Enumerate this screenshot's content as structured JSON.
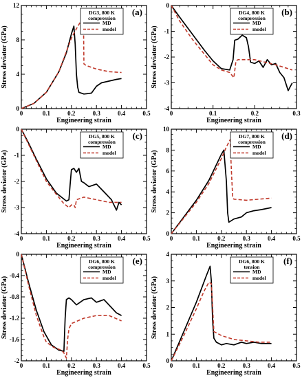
{
  "chart_data": [
    {
      "id": "a",
      "type": "line",
      "panel_label": "(a)",
      "legend_title_1": "DG3, 800 K",
      "legend_title_2": "compression",
      "xlabel": "Engineering strain",
      "ylabel": "Stress deviator (GPa)",
      "xlim": [
        0,
        0.5
      ],
      "ylim": [
        0,
        12
      ],
      "xticks": [
        0,
        0.1,
        0.2,
        0.3,
        0.4,
        0.5
      ],
      "xtick_labels": [
        "0",
        "0.1",
        "0.2",
        "0.3",
        "0.4",
        "0.5"
      ],
      "yticks": [
        0,
        4,
        8,
        12
      ],
      "ytick_labels": [
        "0",
        "4",
        "8",
        "12"
      ],
      "series": [
        {
          "name": "MD",
          "color": "#000000",
          "dash": false,
          "x": [
            0,
            0.05,
            0.1,
            0.15,
            0.18,
            0.2,
            0.21,
            0.215,
            0.22,
            0.225,
            0.23,
            0.25,
            0.28,
            0.3,
            0.32,
            0.35,
            0.38,
            0.4
          ],
          "y": [
            0,
            0.6,
            1.9,
            4.3,
            6.5,
            8.7,
            9.6,
            7.5,
            4.0,
            2.5,
            1.9,
            1.7,
            1.8,
            2.6,
            3.0,
            3.2,
            3.4,
            3.5
          ]
        },
        {
          "name": "model",
          "color": "#c0392b",
          "dash": true,
          "x": [
            0,
            0.05,
            0.1,
            0.15,
            0.2,
            0.22,
            0.24,
            0.248,
            0.25,
            0.26,
            0.3,
            0.35,
            0.4
          ],
          "y": [
            0,
            0.6,
            1.9,
            4.3,
            8.2,
            9.3,
            10.3,
            10.6,
            5.2,
            5.0,
            4.6,
            4.3,
            4.2
          ]
        }
      ]
    },
    {
      "id": "b",
      "type": "line",
      "panel_label": "(b)",
      "legend_title_1": "DG4, 800 K",
      "legend_title_2": "compression",
      "xlabel": "Engineering strain",
      "ylabel": "Stress deviator (GPa)",
      "xlim": [
        0,
        0.3
      ],
      "ylim": [
        -4,
        0
      ],
      "xticks": [
        0,
        0.1,
        0.2,
        0.3
      ],
      "xtick_labels": [
        "0",
        "0.1",
        "0.2",
        "0.3"
      ],
      "yticks": [
        -4,
        -3,
        -2,
        -1,
        0
      ],
      "ytick_labels": [
        "-4",
        "-3",
        "-2",
        "-1",
        "0"
      ],
      "series": [
        {
          "name": "MD",
          "color": "#000000",
          "dash": false,
          "x": [
            0,
            0.02,
            0.05,
            0.08,
            0.1,
            0.12,
            0.14,
            0.148,
            0.152,
            0.16,
            0.17,
            0.18,
            0.185,
            0.19,
            0.2,
            0.21,
            0.22,
            0.23,
            0.24,
            0.25,
            0.26,
            0.27,
            0.28,
            0.29
          ],
          "y": [
            0,
            -0.45,
            -1.1,
            -1.75,
            -2.15,
            -2.45,
            -2.5,
            -2.1,
            -1.35,
            -1.3,
            -1.15,
            -1.25,
            -1.6,
            -2.2,
            -2.25,
            -2.15,
            -2.4,
            -2.1,
            -2.3,
            -2.25,
            -2.6,
            -2.8,
            -3.3,
            -3.0
          ]
        },
        {
          "name": "model",
          "color": "#c0392b",
          "dash": true,
          "x": [
            0,
            0.02,
            0.05,
            0.08,
            0.1,
            0.12,
            0.14,
            0.15,
            0.155,
            0.16,
            0.2,
            0.25,
            0.29
          ],
          "y": [
            0,
            -0.6,
            -1.3,
            -1.9,
            -2.3,
            -2.5,
            -2.6,
            -2.8,
            -2.15,
            -2.1,
            -2.1,
            -2.3,
            -2.5
          ]
        }
      ]
    },
    {
      "id": "c",
      "type": "line",
      "panel_label": "(c)",
      "legend_title_1": "DG5, 800 K",
      "legend_title_2": "compression",
      "xlabel": "Engineering strain",
      "ylabel": "Stress deviator (GPa)",
      "xlim": [
        0,
        0.5
      ],
      "ylim": [
        -4,
        0
      ],
      "xticks": [
        0,
        0.1,
        0.2,
        0.3,
        0.4,
        0.5
      ],
      "xtick_labels": [
        "0",
        "0.1",
        "0.2",
        "0.3",
        "0.4",
        "0.5"
      ],
      "yticks": [
        -4,
        -3,
        -2,
        -1,
        0
      ],
      "ytick_labels": [
        "-4",
        "-3",
        "-2",
        "-1",
        "0"
      ],
      "series": [
        {
          "name": "MD",
          "color": "#000000",
          "dash": false,
          "x": [
            0,
            0.03,
            0.06,
            0.1,
            0.14,
            0.18,
            0.19,
            0.195,
            0.2,
            0.21,
            0.22,
            0.23,
            0.24,
            0.25,
            0.27,
            0.3,
            0.32,
            0.34,
            0.36,
            0.38,
            0.39,
            0.4
          ],
          "y": [
            0,
            -0.55,
            -1.15,
            -1.9,
            -2.45,
            -2.75,
            -2.7,
            -2.1,
            -1.55,
            -1.5,
            -1.65,
            -1.5,
            -2.0,
            -2.05,
            -2.2,
            -2.1,
            -2.3,
            -2.5,
            -2.7,
            -3.1,
            -2.8,
            -2.9
          ]
        },
        {
          "name": "model",
          "color": "#c0392b",
          "dash": true,
          "x": [
            0,
            0.03,
            0.06,
            0.1,
            0.14,
            0.17,
            0.19,
            0.2,
            0.21,
            0.215,
            0.22,
            0.25,
            0.3,
            0.35,
            0.4
          ],
          "y": [
            0,
            -0.6,
            -1.2,
            -2.0,
            -2.5,
            -2.85,
            -3.0,
            -2.9,
            -2.9,
            -3.0,
            -2.7,
            -2.6,
            -2.7,
            -2.8,
            -2.8
          ]
        }
      ]
    },
    {
      "id": "d",
      "type": "line",
      "panel_label": "(d)",
      "legend_title_1": "DG7, 800 K",
      "legend_title_2": "compression",
      "xlabel": "Engineering strain",
      "ylabel": "Stress deviator (GPa)",
      "xlim": [
        0,
        0.5
      ],
      "ylim": [
        0,
        10
      ],
      "xticks": [
        0,
        0.1,
        0.2,
        0.3,
        0.4,
        0.5
      ],
      "xtick_labels": [
        "0",
        "0.1",
        "0.2",
        "0.3",
        "0.4",
        "0.5"
      ],
      "yticks": [
        0,
        2,
        4,
        6,
        8,
        10
      ],
      "ytick_labels": [
        "0",
        "2",
        "4",
        "6",
        "8",
        "10"
      ],
      "series": [
        {
          "name": "MD",
          "color": "#000000",
          "dash": false,
          "x": [
            0,
            0.05,
            0.1,
            0.15,
            0.2,
            0.21,
            0.22,
            0.225,
            0.23,
            0.25,
            0.28,
            0.3,
            0.33,
            0.36,
            0.38,
            0.4
          ],
          "y": [
            0,
            1.6,
            3.2,
            5.1,
            7.6,
            8.0,
            5.0,
            2.0,
            1.1,
            1.4,
            1.6,
            2.0,
            2.2,
            2.3,
            2.4,
            2.5
          ]
        },
        {
          "name": "model",
          "color": "#c0392b",
          "dash": true,
          "x": [
            0,
            0.05,
            0.1,
            0.15,
            0.2,
            0.22,
            0.235,
            0.24,
            0.245,
            0.25,
            0.3,
            0.35,
            0.4
          ],
          "y": [
            0,
            1.5,
            3.0,
            4.8,
            7.2,
            8.3,
            9.0,
            6.0,
            3.5,
            3.3,
            3.2,
            3.3,
            3.4
          ]
        }
      ]
    },
    {
      "id": "e",
      "type": "line",
      "panel_label": "(e)",
      "legend_title_1": "DG6, 800 K",
      "legend_title_2": "compression",
      "xlabel": "Engineering strain",
      "ylabel": "Stress deviator (GPa)",
      "xlim": [
        0,
        0.5
      ],
      "ylim": [
        -2,
        0
      ],
      "xticks": [
        0,
        0.1,
        0.2,
        0.3,
        0.4,
        0.5
      ],
      "xtick_labels": [
        "0",
        "0.1",
        "0.2",
        "0.3",
        "0.4",
        "0.5"
      ],
      "yticks": [
        -2,
        -1.6,
        -1.2,
        -0.8,
        -0.4,
        0
      ],
      "ytick_labels": [
        "-2",
        "-1.6",
        "-1.2",
        "-0.8",
        "-0.4",
        "0"
      ],
      "series": [
        {
          "name": "MD",
          "color": "#000000",
          "dash": false,
          "x": [
            0,
            0.03,
            0.06,
            0.09,
            0.12,
            0.15,
            0.17,
            0.175,
            0.18,
            0.19,
            0.2,
            0.22,
            0.25,
            0.28,
            0.3,
            0.33,
            0.36,
            0.38,
            0.4
          ],
          "y": [
            0,
            -0.55,
            -1.05,
            -1.45,
            -1.7,
            -1.8,
            -1.82,
            -1.2,
            -0.85,
            -0.82,
            -0.85,
            -0.95,
            -0.85,
            -0.82,
            -0.9,
            -0.85,
            -1.0,
            -1.1,
            -1.15
          ]
        },
        {
          "name": "model",
          "color": "#c0392b",
          "dash": true,
          "x": [
            0,
            0.03,
            0.06,
            0.09,
            0.1,
            0.13,
            0.16,
            0.17,
            0.18,
            0.185,
            0.19,
            0.2,
            0.25,
            0.3,
            0.35,
            0.4
          ],
          "y": [
            0,
            -0.6,
            -1.15,
            -1.55,
            -1.65,
            -1.75,
            -1.8,
            -1.85,
            -1.95,
            -1.6,
            -1.4,
            -1.3,
            -1.2,
            -1.15,
            -1.15,
            -1.25
          ]
        }
      ]
    },
    {
      "id": "f",
      "type": "line",
      "panel_label": "(f)",
      "legend_title_1": "DG6, 800 K",
      "legend_title_2": "tension",
      "xlabel": "Engineering strain",
      "ylabel": "Stress deviator (GPa)",
      "xlim": [
        0,
        0.5
      ],
      "ylim": [
        0,
        4
      ],
      "xticks": [
        0,
        0.1,
        0.2,
        0.3,
        0.4,
        0.5
      ],
      "xtick_labels": [
        "0",
        "0.1",
        "0.2",
        "0.3",
        "0.4",
        "0.5"
      ],
      "yticks": [
        0,
        1,
        2,
        3,
        4
      ],
      "ytick_labels": [
        "0",
        "1",
        "2",
        "3",
        "4"
      ],
      "series": [
        {
          "name": "MD",
          "color": "#000000",
          "dash": false,
          "x": [
            0,
            0.05,
            0.1,
            0.14,
            0.155,
            0.16,
            0.165,
            0.17,
            0.18,
            0.2,
            0.22,
            0.25,
            0.28,
            0.3,
            0.33,
            0.36,
            0.4
          ],
          "y": [
            0,
            1.1,
            2.2,
            3.2,
            3.55,
            3.0,
            1.5,
            0.85,
            0.7,
            0.6,
            0.65,
            0.6,
            0.7,
            0.65,
            0.7,
            0.65,
            0.65
          ]
        },
        {
          "name": "model",
          "color": "#c0392b",
          "dash": true,
          "x": [
            0,
            0.05,
            0.1,
            0.13,
            0.15,
            0.16,
            0.165,
            0.17,
            0.2,
            0.25,
            0.3,
            0.35,
            0.4
          ],
          "y": [
            0,
            0.95,
            1.95,
            2.6,
            2.95,
            2.9,
            2.0,
            1.1,
            0.95,
            0.8,
            0.75,
            0.7,
            0.7
          ]
        }
      ]
    }
  ]
}
